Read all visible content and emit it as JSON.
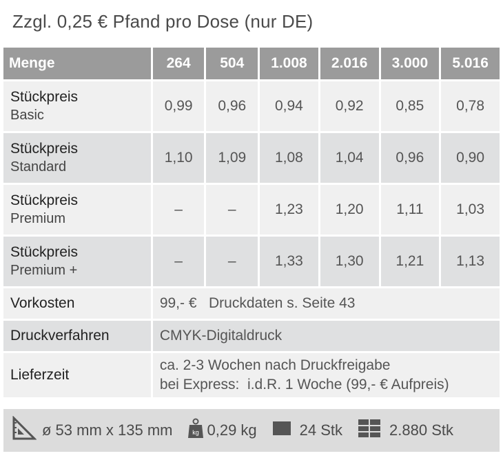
{
  "note": "Zzgl. 0,25 € Pfand pro Dose (nur DE)",
  "table": {
    "header": [
      "Menge",
      "264",
      "504",
      "1.008",
      "2.016",
      "3.000",
      "5.016"
    ],
    "rows": [
      {
        "label": "Stückpreis",
        "sub": "Basic",
        "values": [
          "0,99",
          "0,96",
          "0,94",
          "0,92",
          "0,85",
          "0,78"
        ]
      },
      {
        "label": "Stückpreis",
        "sub": "Standard",
        "values": [
          "1,10",
          "1,09",
          "1,08",
          "1,04",
          "0,96",
          "0,90"
        ]
      },
      {
        "label": "Stückpreis",
        "sub": "Premium",
        "values": [
          "–",
          "–",
          "1,23",
          "1,20",
          "1,11",
          "1,03"
        ]
      },
      {
        "label": "Stückpreis",
        "sub": "Premium +",
        "values": [
          "–",
          "–",
          "1,33",
          "1,30",
          "1,21",
          "1,13"
        ]
      }
    ],
    "vorkosten": {
      "label": "Vorkosten",
      "value": "99,- €   Druckdaten s. Seite 43"
    },
    "druckverfahren": {
      "label": "Druckverfahren",
      "value": "CMYK-Digitaldruck"
    },
    "lieferzeit": {
      "label": "Lieferzeit",
      "line1": "ca. 2-3 Wochen nach Druckfreigabe",
      "line2": "bei Express:  i.d.R. 1 Woche (99,- € Aufpreis)"
    }
  },
  "footer": {
    "dimensions": "ø 53 mm x 135 mm",
    "weight": "0,29 kg",
    "weight_icon_label": "kg",
    "pack": "24 Stk",
    "pallet": "2.880 Stk"
  },
  "icons": {
    "dimensions": "ruler-triangle-icon",
    "weight": "weight-icon",
    "pack": "box-icon",
    "pallet": "pallet-icon"
  },
  "colors": {
    "header_bg": "#9b9b9b",
    "row_light": "#f0f0f0",
    "row_dark": "#dfe0e1",
    "footer_bg": "#dcdcdc"
  }
}
